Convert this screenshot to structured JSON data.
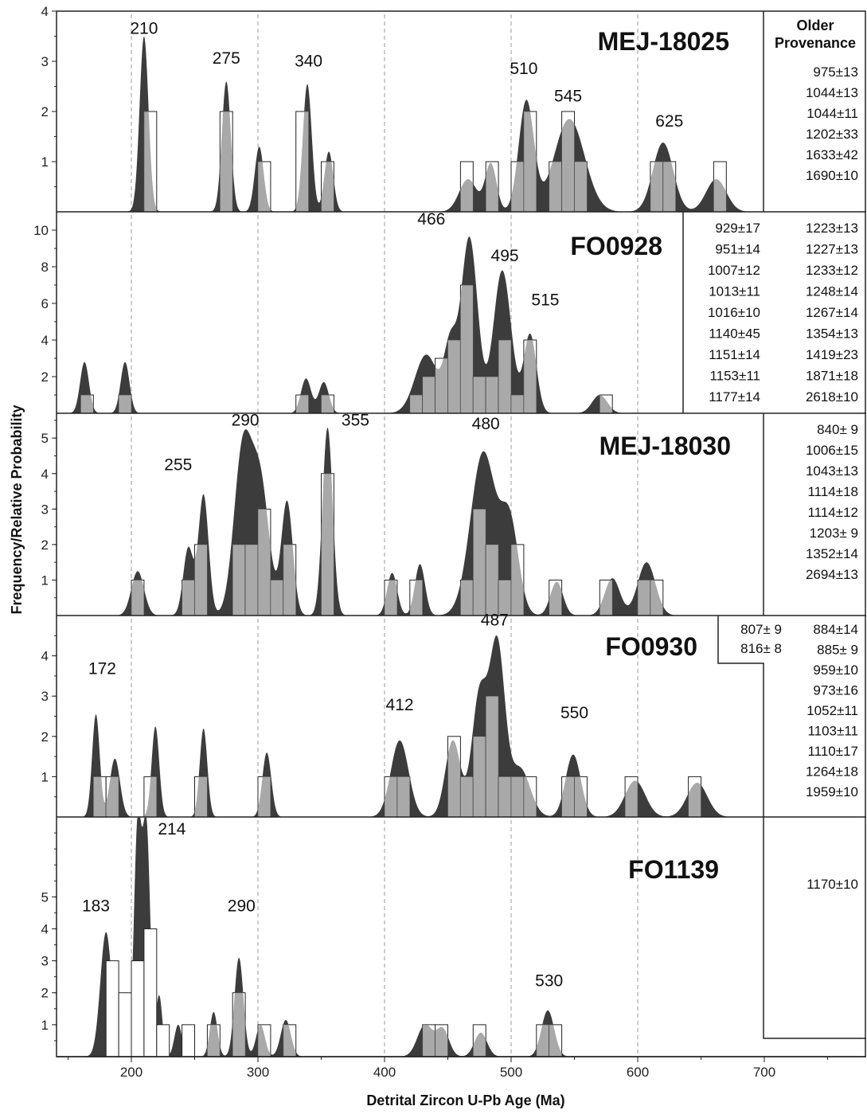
{
  "chart_data": {
    "type": "bar",
    "xlabel": "Detrital Zircon U-Pb Age (Ma)",
    "ylabel": "Frequency/Relative Probability",
    "xlim": [
      140,
      780
    ],
    "x_ticks": [
      200,
      300,
      400,
      500,
      600,
      700
    ],
    "reference_lines": [
      200,
      300,
      400,
      500,
      600
    ],
    "bin_width": 10,
    "panels": [
      {
        "title": "MEJ-18025",
        "ylim": [
          0,
          4
        ],
        "y_ticks": [
          1,
          2,
          3,
          4
        ],
        "histogram": [
          {
            "x": 210,
            "v": 2
          },
          {
            "x": 270,
            "v": 2
          },
          {
            "x": 300,
            "v": 1
          },
          {
            "x": 330,
            "v": 2
          },
          {
            "x": 350,
            "v": 1
          },
          {
            "x": 460,
            "v": 1
          },
          {
            "x": 480,
            "v": 1
          },
          {
            "x": 500,
            "v": 1
          },
          {
            "x": 510,
            "v": 2
          },
          {
            "x": 530,
            "v": 1
          },
          {
            "x": 540,
            "v": 2
          },
          {
            "x": 550,
            "v": 1
          },
          {
            "x": 610,
            "v": 1
          },
          {
            "x": 620,
            "v": 1
          },
          {
            "x": 660,
            "v": 1
          }
        ],
        "peaks": [
          {
            "mu": 210,
            "s": 3.5,
            "h": 3.5
          },
          {
            "mu": 275,
            "s": 3.5,
            "h": 2.6
          },
          {
            "mu": 301,
            "s": 3.5,
            "h": 1.3
          },
          {
            "mu": 339,
            "s": 3.5,
            "h": 2.55
          },
          {
            "mu": 356,
            "s": 3.5,
            "h": 1.2
          },
          {
            "mu": 466,
            "s": 7,
            "h": 0.65
          },
          {
            "mu": 484,
            "s": 4.5,
            "h": 0.95
          },
          {
            "mu": 512,
            "s": 6,
            "h": 2.2
          },
          {
            "mu": 546,
            "s": 12,
            "h": 1.85
          },
          {
            "mu": 620,
            "s": 8,
            "h": 1.38
          },
          {
            "mu": 662,
            "s": 8,
            "h": 0.65
          }
        ],
        "labels": [
          {
            "text": "210",
            "x": 210,
            "y": 3.55
          },
          {
            "text": "275",
            "x": 275,
            "y": 2.95
          },
          {
            "text": "340",
            "x": 340,
            "y": 2.9
          },
          {
            "text": "510",
            "x": 510,
            "y": 2.75
          },
          {
            "text": "545",
            "x": 545,
            "y": 2.2
          },
          {
            "text": "625",
            "x": 625,
            "y": 1.7
          }
        ]
      },
      {
        "title": "FO0928",
        "ylim": [
          0,
          11
        ],
        "y_ticks": [
          2,
          4,
          6,
          8,
          10
        ],
        "histogram": [
          {
            "x": 160,
            "v": 1
          },
          {
            "x": 190,
            "v": 1
          },
          {
            "x": 330,
            "v": 1
          },
          {
            "x": 350,
            "v": 1
          },
          {
            "x": 420,
            "v": 1
          },
          {
            "x": 430,
            "v": 2
          },
          {
            "x": 440,
            "v": 3
          },
          {
            "x": 450,
            "v": 4
          },
          {
            "x": 460,
            "v": 7
          },
          {
            "x": 470,
            "v": 2
          },
          {
            "x": 480,
            "v": 2
          },
          {
            "x": 490,
            "v": 4
          },
          {
            "x": 500,
            "v": 1
          },
          {
            "x": 510,
            "v": 4
          },
          {
            "x": 570,
            "v": 1
          }
        ],
        "peaks": [
          {
            "mu": 163,
            "s": 3.5,
            "h": 2.8
          },
          {
            "mu": 195,
            "s": 3.5,
            "h": 2.8
          },
          {
            "mu": 338,
            "s": 4,
            "h": 1.9
          },
          {
            "mu": 352,
            "s": 4,
            "h": 1.7
          },
          {
            "mu": 433,
            "s": 9,
            "h": 3.2
          },
          {
            "mu": 452,
            "s": 5,
            "h": 3.5
          },
          {
            "mu": 467,
            "s": 6.5,
            "h": 9.6
          },
          {
            "mu": 493,
            "s": 7,
            "h": 7.8
          },
          {
            "mu": 515,
            "s": 5,
            "h": 4.3
          },
          {
            "mu": 570,
            "s": 6,
            "h": 1.0
          }
        ],
        "labels": [
          {
            "text": "466",
            "x": 437,
            "y": 10.3
          },
          {
            "text": "495",
            "x": 495,
            "y": 8.3
          },
          {
            "text": "515",
            "x": 527,
            "y": 5.9
          }
        ]
      },
      {
        "title": "MEJ-18030",
        "ylim": [
          0,
          5.7
        ],
        "y_ticks": [
          1,
          2,
          3,
          4,
          5
        ],
        "histogram": [
          {
            "x": 200,
            "v": 1
          },
          {
            "x": 240,
            "v": 1
          },
          {
            "x": 250,
            "v": 2
          },
          {
            "x": 280,
            "v": 2
          },
          {
            "x": 290,
            "v": 2
          },
          {
            "x": 300,
            "v": 3
          },
          {
            "x": 310,
            "v": 1
          },
          {
            "x": 320,
            "v": 2
          },
          {
            "x": 350,
            "v": 4
          },
          {
            "x": 400,
            "v": 1
          },
          {
            "x": 420,
            "v": 1
          },
          {
            "x": 460,
            "v": 1
          },
          {
            "x": 470,
            "v": 3
          },
          {
            "x": 480,
            "v": 2
          },
          {
            "x": 490,
            "v": 1
          },
          {
            "x": 500,
            "v": 2
          },
          {
            "x": 530,
            "v": 1
          },
          {
            "x": 570,
            "v": 1
          },
          {
            "x": 600,
            "v": 1
          },
          {
            "x": 610,
            "v": 1
          }
        ],
        "peaks": [
          {
            "mu": 205,
            "s": 5,
            "h": 1.25
          },
          {
            "mu": 245,
            "s": 4,
            "h": 1.9
          },
          {
            "mu": 257,
            "s": 4,
            "h": 3.4
          },
          {
            "mu": 288,
            "s": 7,
            "h": 4.6
          },
          {
            "mu": 302,
            "s": 7,
            "h": 3.6
          },
          {
            "mu": 323,
            "s": 4.5,
            "h": 3.2
          },
          {
            "mu": 355,
            "s": 4,
            "h": 5.3
          },
          {
            "mu": 406,
            "s": 4,
            "h": 1.2
          },
          {
            "mu": 428,
            "s": 4,
            "h": 1.45
          },
          {
            "mu": 478,
            "s": 10,
            "h": 4.6
          },
          {
            "mu": 499,
            "s": 7,
            "h": 2.5
          },
          {
            "mu": 536,
            "s": 5,
            "h": 0.95
          },
          {
            "mu": 580,
            "s": 6,
            "h": 1.05
          },
          {
            "mu": 607,
            "s": 7,
            "h": 1.5
          }
        ],
        "labels": [
          {
            "text": "255",
            "x": 237,
            "y": 4.1
          },
          {
            "text": "290",
            "x": 290,
            "y": 5.35
          },
          {
            "text": "355",
            "x": 377,
            "y": 5.35
          },
          {
            "text": "480",
            "x": 480,
            "y": 5.25
          }
        ]
      },
      {
        "title": "FO0930",
        "ylim": [
          0,
          5
        ],
        "y_ticks": [
          1,
          2,
          3,
          4
        ],
        "histogram": [
          {
            "x": 170,
            "v": 1
          },
          {
            "x": 180,
            "v": 1
          },
          {
            "x": 210,
            "v": 1
          },
          {
            "x": 250,
            "v": 1
          },
          {
            "x": 300,
            "v": 1
          },
          {
            "x": 400,
            "v": 1
          },
          {
            "x": 410,
            "v": 1
          },
          {
            "x": 450,
            "v": 2
          },
          {
            "x": 460,
            "v": 1
          },
          {
            "x": 470,
            "v": 2
          },
          {
            "x": 480,
            "v": 3
          },
          {
            "x": 490,
            "v": 1
          },
          {
            "x": 500,
            "v": 1
          },
          {
            "x": 510,
            "v": 1
          },
          {
            "x": 540,
            "v": 1
          },
          {
            "x": 550,
            "v": 1
          },
          {
            "x": 590,
            "v": 1
          },
          {
            "x": 640,
            "v": 1
          }
        ],
        "peaks": [
          {
            "mu": 172,
            "s": 3,
            "h": 2.55
          },
          {
            "mu": 187,
            "s": 4,
            "h": 1.45
          },
          {
            "mu": 219,
            "s": 3,
            "h": 2.25
          },
          {
            "mu": 257,
            "s": 3,
            "h": 2.2
          },
          {
            "mu": 307,
            "s": 3.5,
            "h": 1.6
          },
          {
            "mu": 412,
            "s": 7,
            "h": 1.9
          },
          {
            "mu": 454,
            "s": 6,
            "h": 1.9
          },
          {
            "mu": 475,
            "s": 6,
            "h": 3.0
          },
          {
            "mu": 489,
            "s": 6,
            "h": 4.2
          },
          {
            "mu": 507,
            "s": 8,
            "h": 1.2
          },
          {
            "mu": 549,
            "s": 6,
            "h": 1.55
          },
          {
            "mu": 598,
            "s": 8,
            "h": 0.9
          },
          {
            "mu": 647,
            "s": 8,
            "h": 0.85
          }
        ],
        "labels": [
          {
            "text": "172",
            "x": 177,
            "y": 3.55
          },
          {
            "text": "412",
            "x": 412,
            "y": 2.65
          },
          {
            "text": "487",
            "x": 487,
            "y": 4.75
          },
          {
            "text": "550",
            "x": 550,
            "y": 2.45
          }
        ]
      },
      {
        "title": "FO1139",
        "ylim": [
          0,
          7.5
        ],
        "y_ticks": [
          1,
          2,
          3,
          4,
          5
        ],
        "histogram": [
          {
            "x": 180,
            "v": 3,
            "hollow": true
          },
          {
            "x": 190,
            "v": 2,
            "hollow": true
          },
          {
            "x": 200,
            "v": 3,
            "hollow": true
          },
          {
            "x": 210,
            "v": 4,
            "hollow": true
          },
          {
            "x": 220,
            "v": 1,
            "hollow": true
          },
          {
            "x": 240,
            "v": 1,
            "hollow": true
          },
          {
            "x": 260,
            "v": 1
          },
          {
            "x": 280,
            "v": 2
          },
          {
            "x": 300,
            "v": 1
          },
          {
            "x": 320,
            "v": 1
          },
          {
            "x": 430,
            "v": 1
          },
          {
            "x": 440,
            "v": 1
          },
          {
            "x": 470,
            "v": 1
          },
          {
            "x": 520,
            "v": 1
          },
          {
            "x": 530,
            "v": 1
          }
        ],
        "peaks": [
          {
            "mu": 180,
            "s": 4.5,
            "h": 3.9
          },
          {
            "mu": 193,
            "s": 2.5,
            "h": 1.5
          },
          {
            "mu": 205,
            "s": 3,
            "h": 7.2
          },
          {
            "mu": 212,
            "s": 3,
            "h": 7.0
          },
          {
            "mu": 222,
            "s": 2.5,
            "h": 1.9
          },
          {
            "mu": 237,
            "s": 3,
            "h": 1.0
          },
          {
            "mu": 265,
            "s": 3,
            "h": 1.4
          },
          {
            "mu": 285,
            "s": 3.5,
            "h": 3.1
          },
          {
            "mu": 302,
            "s": 3.5,
            "h": 1.0
          },
          {
            "mu": 322,
            "s": 4,
            "h": 1.15
          },
          {
            "mu": 432,
            "s": 6,
            "h": 1.0
          },
          {
            "mu": 446,
            "s": 5,
            "h": 0.85
          },
          {
            "mu": 476,
            "s": 5,
            "h": 0.75
          },
          {
            "mu": 529,
            "s": 5,
            "h": 1.45
          }
        ],
        "labels": [
          {
            "text": "214",
            "x": 232,
            "y": 6.95
          },
          {
            "text": "183",
            "x": 172,
            "y": 4.55
          },
          {
            "text": "290",
            "x": 287,
            "y": 4.55
          },
          {
            "text": "530",
            "x": 530,
            "y": 2.2
          }
        ]
      }
    ],
    "provenance": {
      "heading": [
        "Older",
        "Provenance"
      ],
      "panels": [
        {
          "col1": [],
          "col2": [
            "975±13",
            "1044±13",
            "1044±11",
            "1202±33",
            "1633±42",
            "1690±10"
          ]
        },
        {
          "col1": [
            "929±17",
            "951±14",
            "1007±12",
            "1013±11",
            "1016±10",
            "1140±45",
            "1151±14",
            "1153±11",
            "1177±14"
          ],
          "col2": [
            "1223±13",
            "1227±13",
            "1233±12",
            "1248±14",
            "1267±14",
            "1354±13",
            "1419±23",
            "1871±18",
            "2618±10"
          ]
        },
        {
          "col1": [],
          "col2": [
            "840± 9",
            "1006±15",
            "1043±13",
            "1114±18",
            "1114±12",
            "1203± 9",
            "1352±14",
            "2694±13"
          ]
        },
        {
          "col1": [
            "807± 9",
            "816± 8"
          ],
          "col2": [
            "884±14",
            "885± 9",
            "959±10",
            "973±16",
            "1052±11",
            "1103±11",
            "1110±17",
            "1264±18",
            "1959±10"
          ]
        },
        {
          "col1": [],
          "col2": [
            "1170±10"
          ]
        }
      ]
    }
  }
}
